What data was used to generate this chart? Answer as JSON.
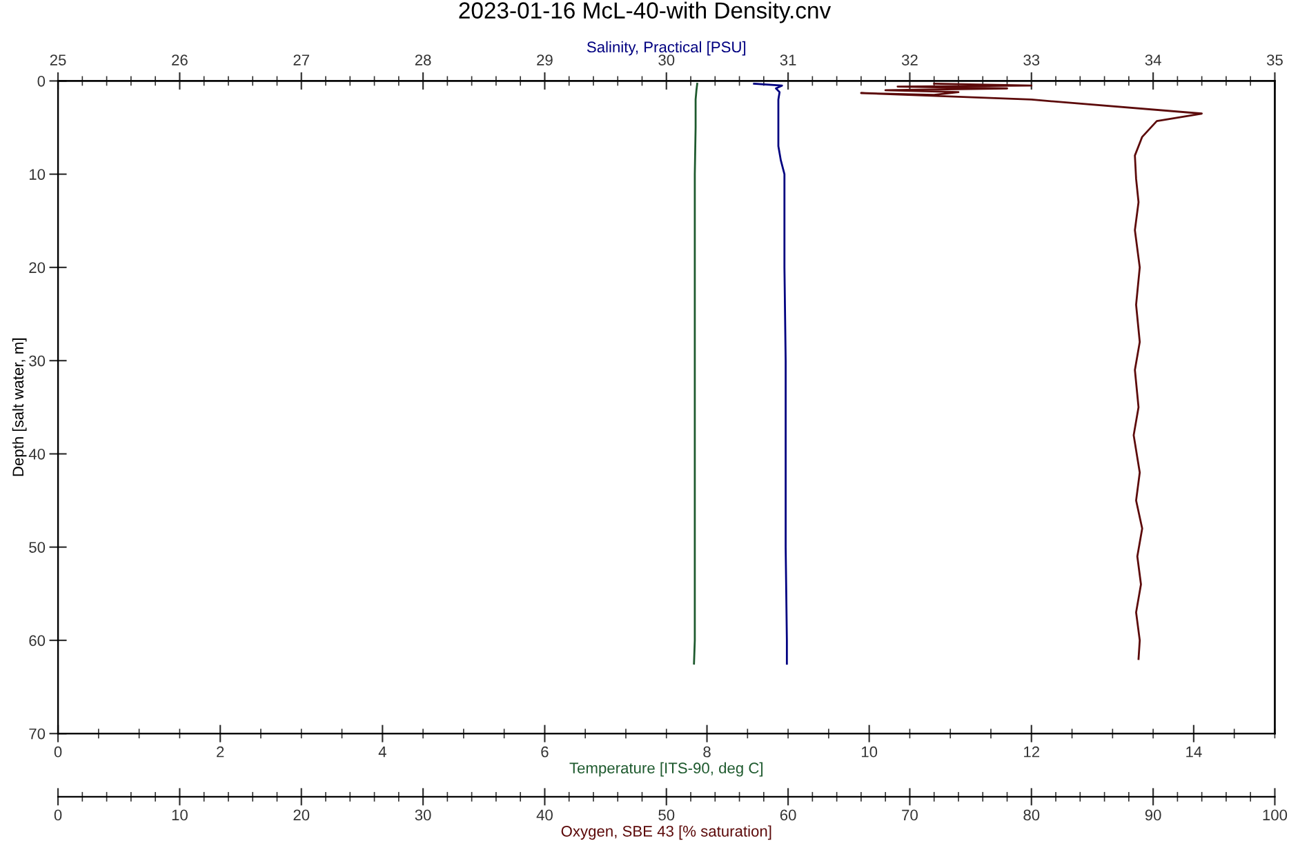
{
  "chart_data": [
    {
      "type": "line",
      "title": "2023-01-16 McL-40-with Density.cnv",
      "xlabel": "Temperature [ITS-90, deg C]",
      "x2label": "Salinity, Practical [PSU]",
      "ylabel": "Depth [salt water, m]",
      "xlim": [
        0,
        15
      ],
      "xticks": [
        0,
        2,
        4,
        6,
        8,
        10,
        12,
        14
      ],
      "x2lim": [
        25,
        35
      ],
      "x2ticks": [
        25,
        26,
        27,
        28,
        29,
        30,
        31,
        32,
        33,
        34,
        35
      ],
      "ylim": [
        70,
        0
      ],
      "yticks": [
        0,
        10,
        20,
        30,
        40,
        50,
        60,
        70
      ],
      "grid": false,
      "legend": false,
      "marker": "none",
      "line_style": "solid",
      "series": [
        {
          "color": "#1e5a2e",
          "x": [
            7.88,
            7.87,
            7.86,
            7.86,
            7.85,
            7.85,
            7.85,
            7.85,
            7.85,
            7.85,
            7.84
          ],
          "values": [
            0.3,
            1,
            2,
            5,
            10,
            20,
            30,
            40,
            50,
            60,
            62.5
          ]
        },
        {
          "axis": "x2",
          "color": "#000080",
          "x": [
            30.72,
            30.95,
            30.9,
            30.93,
            30.92,
            30.92,
            30.92,
            30.94,
            30.97,
            30.97,
            30.98,
            30.98,
            30.98,
            30.99,
            30.99
          ],
          "values": [
            0.3,
            0.5,
            0.8,
            1.2,
            2,
            5,
            7,
            8.5,
            10,
            20,
            30,
            40,
            50,
            60,
            62.5
          ]
        }
      ]
    },
    {
      "type": "line",
      "xlabel": "Oxygen, SBE 43 [% saturation]",
      "xlim": [
        0,
        100
      ],
      "xticks": [
        0,
        10,
        20,
        30,
        40,
        50,
        60,
        70,
        80,
        90,
        100
      ],
      "ylim": [
        70,
        0
      ],
      "tick_labels": "x",
      "marker": "none",
      "line_style": "solid",
      "series": [
        {
          "color": "#5c0a0a",
          "x": [
            72,
            80,
            69,
            78,
            68,
            74,
            72,
            66,
            80,
            94.0,
            90.3,
            89.1,
            88.5,
            88.6,
            88.8,
            88.5,
            88.9,
            88.6,
            88.9,
            88.5,
            88.8,
            88.4,
            88.9,
            88.6,
            89.1,
            88.7,
            89.0,
            88.6,
            88.9,
            88.8
          ],
          "values": [
            0.3,
            0.5,
            0.6,
            0.8,
            1.0,
            1.2,
            1.5,
            1.3,
            2,
            3.5,
            4.3,
            6,
            8,
            10.5,
            13,
            16,
            20,
            24,
            28,
            31,
            35,
            38,
            42,
            45,
            48,
            51,
            54,
            57,
            60,
            62
          ]
        }
      ]
    }
  ]
}
